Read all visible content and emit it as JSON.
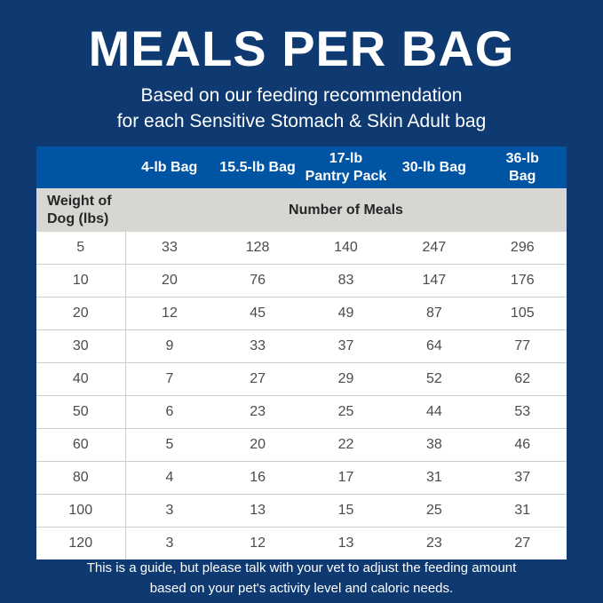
{
  "colors": {
    "background_navy": "#0e3a71",
    "header_blue": "#0054a4",
    "subheader_gray": "#d8d6d3",
    "row_white": "#ffffff",
    "body_text": "#4b4b4b",
    "white_text": "#ffffff",
    "row_border": "#cccccc"
  },
  "header": {
    "title": "MEALS PER BAG",
    "subtitle_line1": "Based on our feeding recommendation",
    "subtitle_line2": "for each Sensitive Stomach & Skin Adult bag"
  },
  "table": {
    "weight_header": "Weight of\nDog (lbs)",
    "meals_header": "Number of Meals",
    "bag_columns": [
      "4-lb Bag",
      "15.5-lb Bag",
      "17-lb\nPantry Pack",
      "30-lb Bag",
      "36-lb\nBag"
    ],
    "rows": [
      {
        "weight": "5",
        "meals": [
          "33",
          "128",
          "140",
          "247",
          "296"
        ]
      },
      {
        "weight": "10",
        "meals": [
          "20",
          "76",
          "83",
          "147",
          "176"
        ]
      },
      {
        "weight": "20",
        "meals": [
          "12",
          "45",
          "49",
          "87",
          "105"
        ]
      },
      {
        "weight": "30",
        "meals": [
          "9",
          "33",
          "37",
          "64",
          "77"
        ]
      },
      {
        "weight": "40",
        "meals": [
          "7",
          "27",
          "29",
          "52",
          "62"
        ]
      },
      {
        "weight": "50",
        "meals": [
          "6",
          "23",
          "25",
          "44",
          "53"
        ]
      },
      {
        "weight": "60",
        "meals": [
          "5",
          "20",
          "22",
          "38",
          "46"
        ]
      },
      {
        "weight": "80",
        "meals": [
          "4",
          "16",
          "17",
          "31",
          "37"
        ]
      },
      {
        "weight": "100",
        "meals": [
          "3",
          "13",
          "15",
          "25",
          "31"
        ]
      },
      {
        "weight": "120",
        "meals": [
          "3",
          "12",
          "13",
          "23",
          "27"
        ]
      }
    ]
  },
  "footer": {
    "line1": "This is a guide, but please talk with your vet to adjust the feeding amount",
    "line2": "based on your pet's activity level and caloric needs."
  },
  "chart_data": {
    "type": "table",
    "title": "MEALS PER BAG",
    "subtitle": "Based on our feeding recommendation for each Sensitive Stomach & Skin Adult bag",
    "value_unit": "Number of Meals",
    "columns": [
      "Weight of Dog (lbs)",
      "4-lb Bag",
      "15.5-lb Bag",
      "17-lb Pantry Pack",
      "30-lb Bag",
      "36-lb Bag"
    ],
    "rows": [
      [
        5,
        33,
        128,
        140,
        247,
        296
      ],
      [
        10,
        20,
        76,
        83,
        147,
        176
      ],
      [
        20,
        12,
        45,
        49,
        87,
        105
      ],
      [
        30,
        9,
        33,
        37,
        64,
        77
      ],
      [
        40,
        7,
        27,
        29,
        52,
        62
      ],
      [
        50,
        6,
        23,
        25,
        44,
        53
      ],
      [
        60,
        5,
        20,
        22,
        38,
        46
      ],
      [
        80,
        4,
        16,
        17,
        31,
        37
      ],
      [
        100,
        3,
        13,
        15,
        25,
        31
      ],
      [
        120,
        3,
        12,
        13,
        23,
        27
      ]
    ],
    "note": "This is a guide, but please talk with your vet to adjust the feeding amount based on your pet's activity level and caloric needs."
  }
}
